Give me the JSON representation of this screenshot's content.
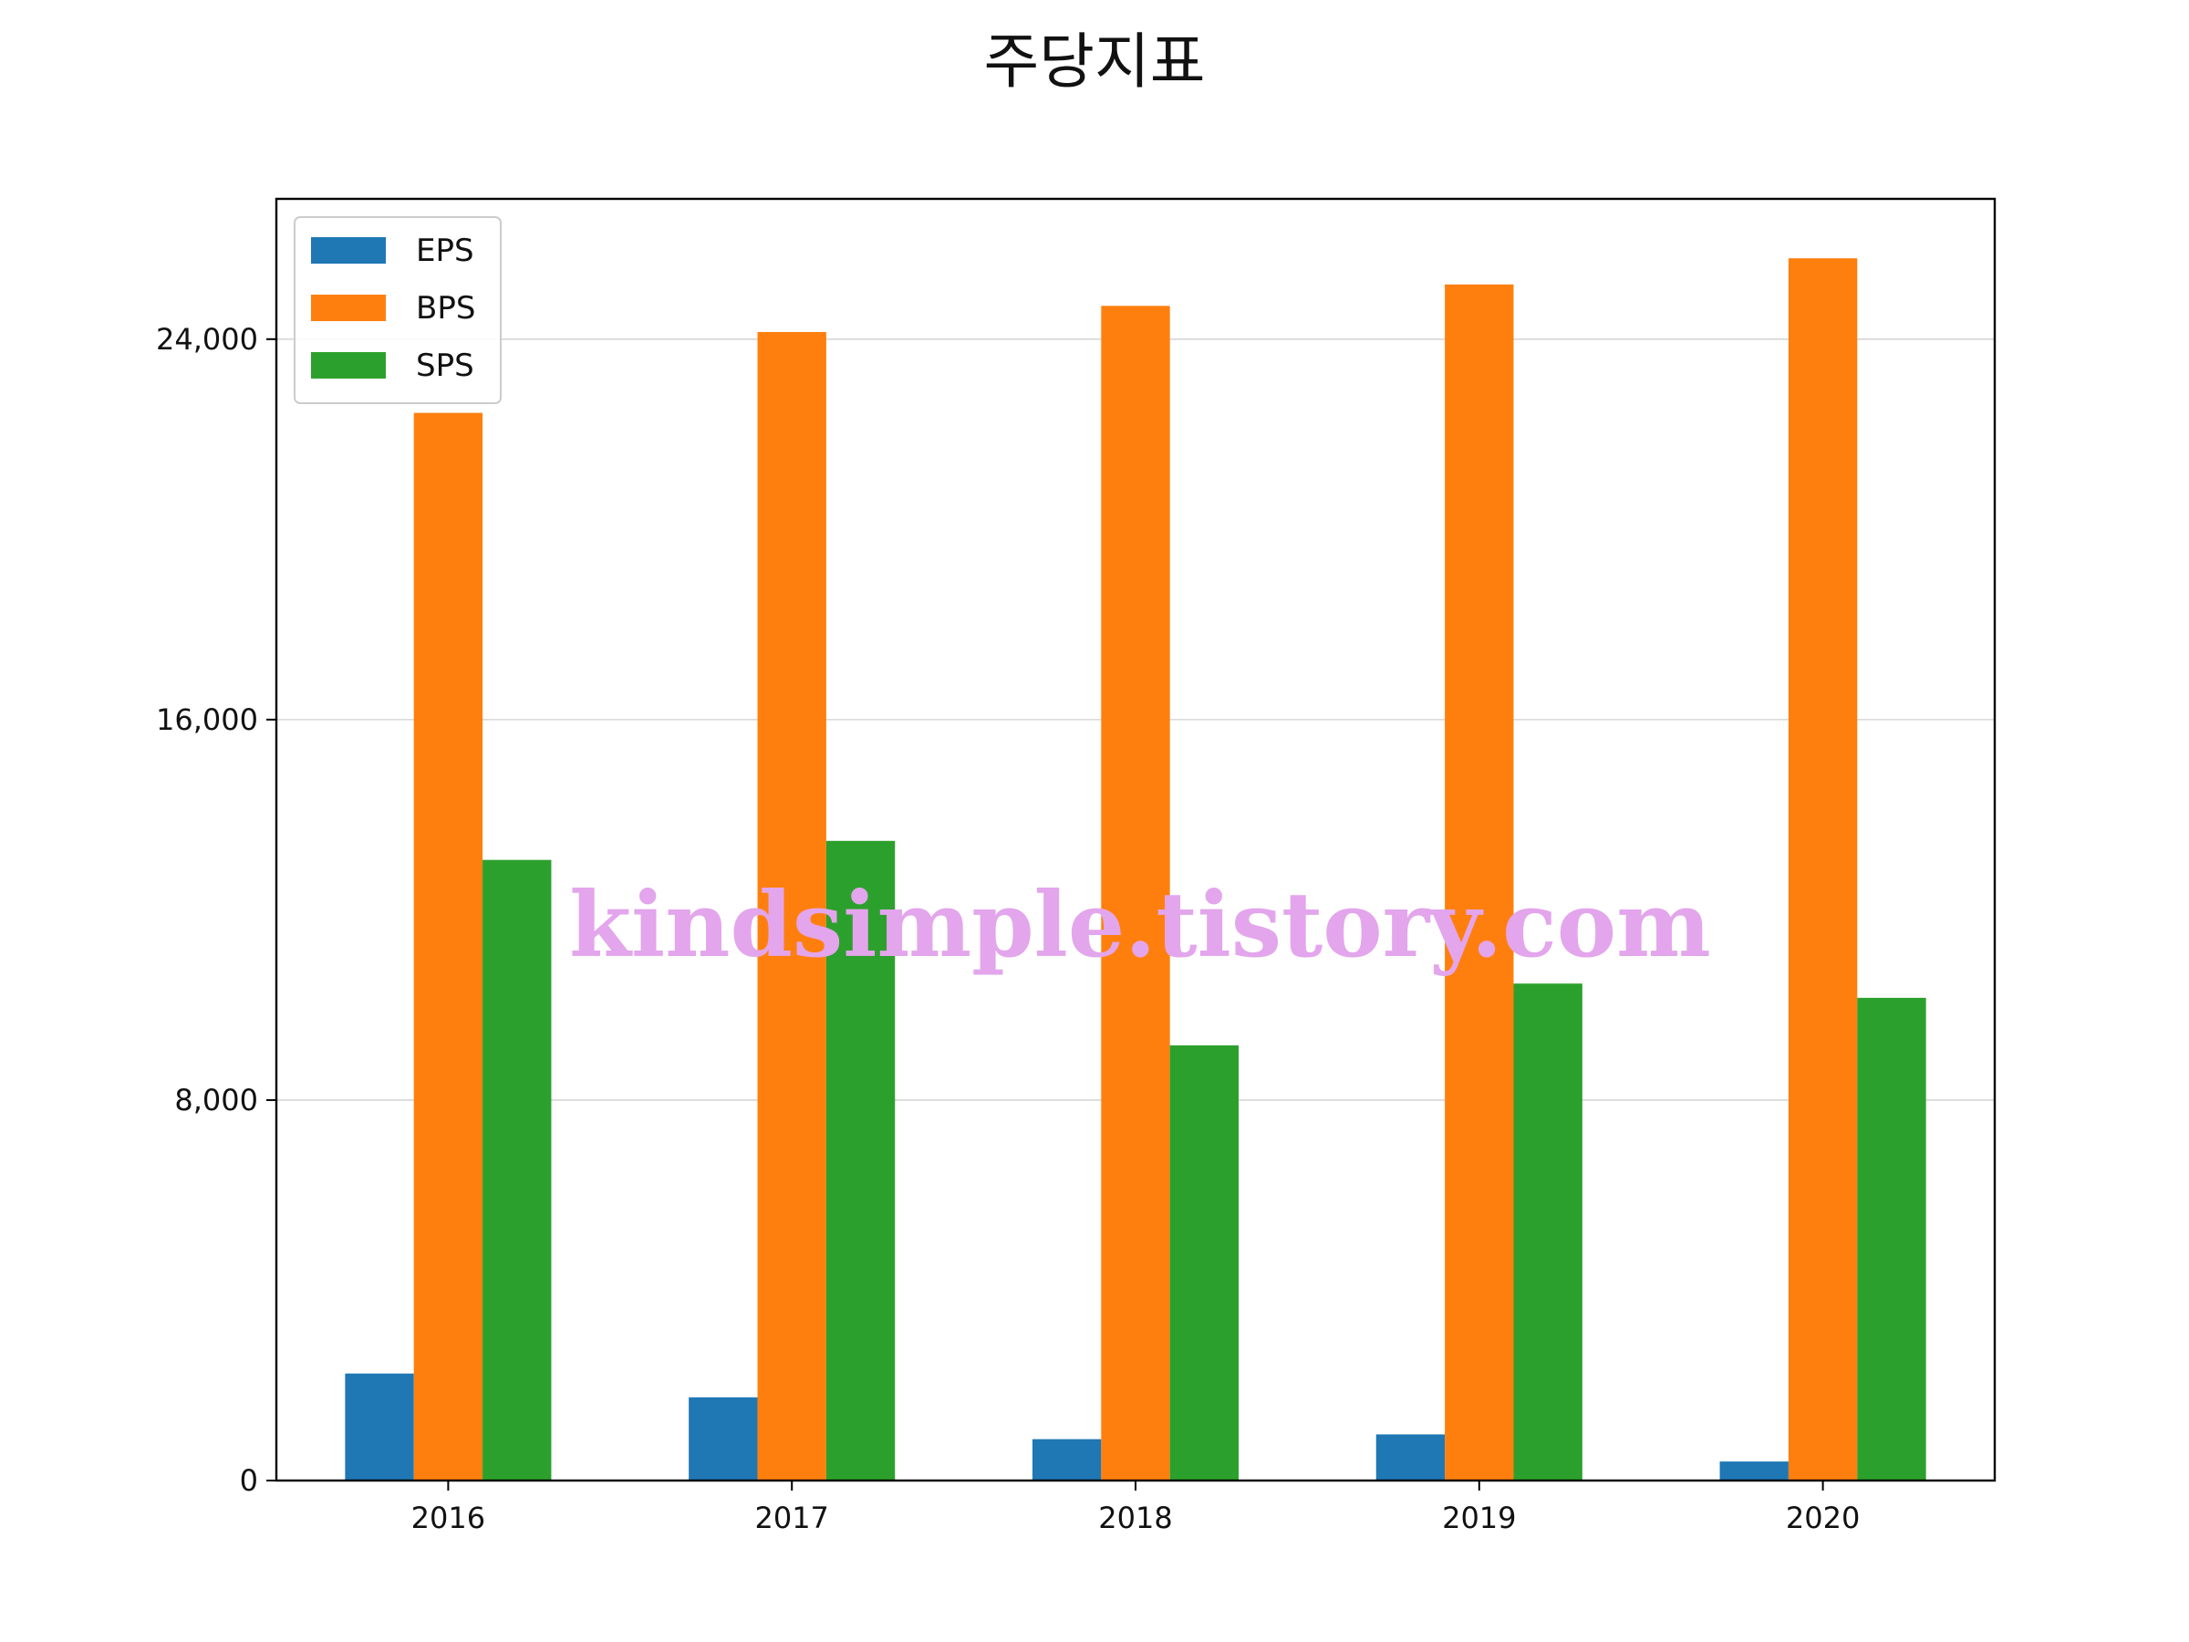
{
  "chart_data": {
    "type": "bar",
    "title": "주당지표",
    "xlabel": "",
    "ylabel": "",
    "categories": [
      "2016",
      "2017",
      "2018",
      "2019",
      "2020"
    ],
    "series": [
      {
        "name": "EPS",
        "color": "#1f77b4",
        "values": [
          2250,
          1750,
          870,
          970,
          400
        ]
      },
      {
        "name": "BPS",
        "color": "#ff7f0e",
        "values": [
          22450,
          24150,
          24700,
          25150,
          25700
        ]
      },
      {
        "name": "SPS",
        "color": "#2ca02c",
        "values": [
          13050,
          13450,
          9150,
          10450,
          10150
        ]
      }
    ],
    "ylim": [
      0,
      26950
    ],
    "yticks": [
      0,
      8000,
      16000,
      24000
    ],
    "ytick_labels": [
      "0",
      "8,000",
      "16,000",
      "24,000"
    ],
    "grid": "horizontal",
    "legend_position": "top-left",
    "watermark": "kindsimple.tistory.com"
  }
}
